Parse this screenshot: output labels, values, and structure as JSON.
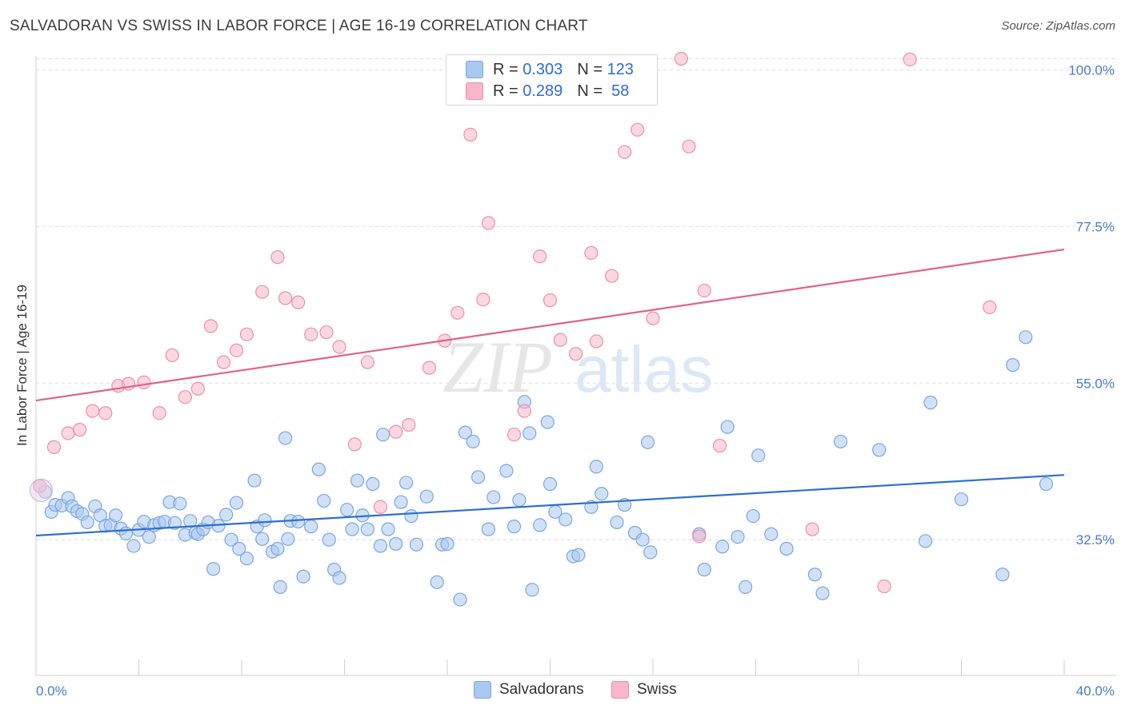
{
  "title": "SALVADORAN VS SWISS IN LABOR FORCE | AGE 16-19 CORRELATION CHART",
  "source": "Source: ZipAtlas.com",
  "watermark": {
    "zip": "ZIP",
    "atlas": "atlas"
  },
  "legend": {
    "rows": [
      {
        "r_label": "R =",
        "r_value": "0.303",
        "n_label": "N =",
        "n_value": "123",
        "color": "#a9c8f0"
      },
      {
        "r_label": "R =",
        "r_value": "0.289",
        "n_label": "N =",
        "n_value": "58",
        "color": "#f7b6c9"
      }
    ]
  },
  "bottom_legend": [
    "Salvadorans",
    "Swiss"
  ],
  "chart_data": {
    "type": "scatter",
    "title": "SALVADORAN VS SWISS IN LABOR FORCE | AGE 16-19 CORRELATION CHART",
    "xlabel": "",
    "ylabel": "In Labor Force | Age 16-19",
    "xlim": [
      0,
      40
    ],
    "ylim": [
      13,
      102
    ],
    "x_tick_labels": [
      {
        "value": 0,
        "label": "0.0%"
      },
      {
        "value": 40,
        "label": "40.0%"
      }
    ],
    "y_tick_labels": [
      {
        "value": 32.5,
        "label": "32.5%"
      },
      {
        "value": 55.0,
        "label": "55.0%"
      },
      {
        "value": 77.5,
        "label": "77.5%"
      },
      {
        "value": 100.0,
        "label": "100.0%"
      }
    ],
    "grid": true,
    "legend_position": "top-center",
    "series": [
      {
        "name": "Salvadorans",
        "color": "#a9c8f0",
        "stroke": "#7aa6de",
        "trend": {
          "x": [
            0,
            40
          ],
          "y": [
            33.1,
            41.8
          ],
          "color": "#2c6fcf"
        },
        "points": [
          [
            0.15,
            40.2
          ],
          [
            0.35,
            39.4
          ],
          [
            0.6,
            36.5
          ],
          [
            0.75,
            37.5
          ],
          [
            1.0,
            37.4
          ],
          [
            1.25,
            38.5
          ],
          [
            1.4,
            37.3
          ],
          [
            1.6,
            36.6
          ],
          [
            1.8,
            36.2
          ],
          [
            2.0,
            35.0
          ],
          [
            2.3,
            37.3
          ],
          [
            2.5,
            36.0
          ],
          [
            2.7,
            34.5
          ],
          [
            2.9,
            34.6
          ],
          [
            3.1,
            36.0
          ],
          [
            3.3,
            34.1
          ],
          [
            3.5,
            33.4
          ],
          [
            3.8,
            31.6
          ],
          [
            4.0,
            33.9
          ],
          [
            4.2,
            35.1
          ],
          [
            4.4,
            32.9
          ],
          [
            4.6,
            34.6
          ],
          [
            4.8,
            34.9
          ],
          [
            5.0,
            35.1
          ],
          [
            5.2,
            37.9
          ],
          [
            5.4,
            34.9
          ],
          [
            5.6,
            37.7
          ],
          [
            5.8,
            33.2
          ],
          [
            6.0,
            35.2
          ],
          [
            6.2,
            33.5
          ],
          [
            6.3,
            33.3
          ],
          [
            6.5,
            34.0
          ],
          [
            6.7,
            35.0
          ],
          [
            6.9,
            28.3
          ],
          [
            7.1,
            34.5
          ],
          [
            7.4,
            36.1
          ],
          [
            7.6,
            32.5
          ],
          [
            7.8,
            37.8
          ],
          [
            7.9,
            31.2
          ],
          [
            8.2,
            29.8
          ],
          [
            8.5,
            41.0
          ],
          [
            8.6,
            34.4
          ],
          [
            8.8,
            32.6
          ],
          [
            8.9,
            35.3
          ],
          [
            9.2,
            30.8
          ],
          [
            9.4,
            31.2
          ],
          [
            9.5,
            25.7
          ],
          [
            9.7,
            47.1
          ],
          [
            9.8,
            32.6
          ],
          [
            9.9,
            35.2
          ],
          [
            10.2,
            35.1
          ],
          [
            10.4,
            27.2
          ],
          [
            10.7,
            34.4
          ],
          [
            11.0,
            42.6
          ],
          [
            11.2,
            38.1
          ],
          [
            11.4,
            32.5
          ],
          [
            11.6,
            28.2
          ],
          [
            11.8,
            27.0
          ],
          [
            12.1,
            36.8
          ],
          [
            12.3,
            34.0
          ],
          [
            12.5,
            41.0
          ],
          [
            12.7,
            36.0
          ],
          [
            12.9,
            34.0
          ],
          [
            13.1,
            40.5
          ],
          [
            13.4,
            31.6
          ],
          [
            13.5,
            47.6
          ],
          [
            13.7,
            34.0
          ],
          [
            14.0,
            31.9
          ],
          [
            14.2,
            37.9
          ],
          [
            14.4,
            40.7
          ],
          [
            14.6,
            35.9
          ],
          [
            14.8,
            31.8
          ],
          [
            15.2,
            38.7
          ],
          [
            15.6,
            26.4
          ],
          [
            15.8,
            31.8
          ],
          [
            16.0,
            31.9
          ],
          [
            16.5,
            23.9
          ],
          [
            16.7,
            47.9
          ],
          [
            17.0,
            46.6
          ],
          [
            17.2,
            41.5
          ],
          [
            17.6,
            34.0
          ],
          [
            17.8,
            38.6
          ],
          [
            18.3,
            42.4
          ],
          [
            18.6,
            34.4
          ],
          [
            18.8,
            38.2
          ],
          [
            19.0,
            52.3
          ],
          [
            19.2,
            47.8
          ],
          [
            19.3,
            25.3
          ],
          [
            19.6,
            34.6
          ],
          [
            19.9,
            49.4
          ],
          [
            20.0,
            40.5
          ],
          [
            20.2,
            36.5
          ],
          [
            20.6,
            35.4
          ],
          [
            20.9,
            30.1
          ],
          [
            21.1,
            30.3
          ],
          [
            21.6,
            37.2
          ],
          [
            21.8,
            43.0
          ],
          [
            22.0,
            39.1
          ],
          [
            22.6,
            35.0
          ],
          [
            22.9,
            37.5
          ],
          [
            23.3,
            33.5
          ],
          [
            23.6,
            32.5
          ],
          [
            23.8,
            46.5
          ],
          [
            23.9,
            30.7
          ],
          [
            25.8,
            33.3
          ],
          [
            26.0,
            28.2
          ],
          [
            26.7,
            31.5
          ],
          [
            26.9,
            48.7
          ],
          [
            27.6,
            25.7
          ],
          [
            27.3,
            32.9
          ],
          [
            27.9,
            35.9
          ],
          [
            28.1,
            44.6
          ],
          [
            28.6,
            33.3
          ],
          [
            29.2,
            31.2
          ],
          [
            30.3,
            27.5
          ],
          [
            30.6,
            24.8
          ],
          [
            31.3,
            46.6
          ],
          [
            32.8,
            45.4
          ],
          [
            34.8,
            52.2
          ],
          [
            34.6,
            32.3
          ],
          [
            36.0,
            38.3
          ],
          [
            37.6,
            27.5
          ],
          [
            38.5,
            61.6
          ],
          [
            39.3,
            40.5
          ],
          [
            38.0,
            57.6
          ]
        ]
      },
      {
        "name": "Swiss",
        "color": "#f7b6c9",
        "stroke": "#ec8eab",
        "trend": {
          "x": [
            0,
            40
          ],
          "y": [
            52.5,
            74.2
          ],
          "color": "#e1618a"
        },
        "points": [
          [
            0.15,
            40.2
          ],
          [
            0.7,
            45.8
          ],
          [
            1.25,
            47.8
          ],
          [
            1.7,
            48.3
          ],
          [
            2.2,
            51.0
          ],
          [
            2.7,
            50.7
          ],
          [
            3.2,
            54.6
          ],
          [
            3.6,
            54.9
          ],
          [
            4.2,
            55.1
          ],
          [
            4.8,
            50.7
          ],
          [
            5.3,
            59.0
          ],
          [
            5.8,
            53.0
          ],
          [
            6.3,
            54.2
          ],
          [
            6.8,
            63.2
          ],
          [
            7.3,
            58.0
          ],
          [
            7.8,
            59.7
          ],
          [
            8.2,
            62.0
          ],
          [
            8.8,
            68.1
          ],
          [
            9.4,
            73.1
          ],
          [
            9.7,
            67.2
          ],
          [
            10.2,
            66.6
          ],
          [
            10.7,
            62.0
          ],
          [
            11.3,
            62.3
          ],
          [
            11.8,
            60.2
          ],
          [
            12.4,
            46.2
          ],
          [
            12.9,
            58.0
          ],
          [
            13.4,
            37.2
          ],
          [
            14.0,
            48.0
          ],
          [
            14.5,
            49.0
          ],
          [
            15.3,
            57.2
          ],
          [
            15.9,
            61.1
          ],
          [
            16.4,
            65.1
          ],
          [
            16.9,
            90.7
          ],
          [
            17.4,
            67.0
          ],
          [
            17.6,
            78.0
          ],
          [
            18.6,
            47.6
          ],
          [
            19.0,
            51.0
          ],
          [
            19.6,
            73.2
          ],
          [
            20.0,
            66.9
          ],
          [
            20.4,
            61.2
          ],
          [
            21.0,
            59.2
          ],
          [
            21.6,
            73.7
          ],
          [
            21.8,
            61.0
          ],
          [
            22.4,
            70.4
          ],
          [
            22.9,
            88.2
          ],
          [
            23.4,
            91.4
          ],
          [
            24.0,
            64.3
          ],
          [
            25.1,
            101.6
          ],
          [
            25.4,
            89.0
          ],
          [
            25.8,
            33.0
          ],
          [
            26.0,
            68.3
          ],
          [
            26.6,
            46.0
          ],
          [
            30.2,
            34.0
          ],
          [
            33.0,
            25.8
          ],
          [
            34.0,
            101.5
          ],
          [
            37.1,
            65.9
          ]
        ]
      }
    ]
  }
}
